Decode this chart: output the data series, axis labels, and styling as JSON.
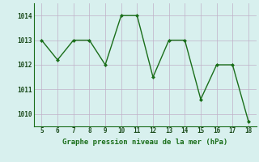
{
  "x": [
    5,
    6,
    7,
    8,
    9,
    10,
    11,
    12,
    13,
    14,
    15,
    16,
    17,
    18
  ],
  "y": [
    1013.0,
    1012.2,
    1013.0,
    1013.0,
    1012.0,
    1014.0,
    1014.0,
    1011.5,
    1013.0,
    1013.0,
    1010.6,
    1012.0,
    1012.0,
    1009.7
  ],
  "line_color": "#1a6e1a",
  "marker": "D",
  "marker_size": 2.0,
  "line_width": 1.0,
  "bg_color": "#d8f0ee",
  "grid_color": "#c0b0c8",
  "xlabel": "Graphe pression niveau de la mer (hPa)",
  "xlabel_color": "#1a6e1a",
  "xlabel_fontsize": 6.5,
  "tick_fontsize": 5.5,
  "ytick_labels": [
    1010,
    1011,
    1012,
    1013,
    1014
  ],
  "xtick_labels": [
    5,
    6,
    7,
    8,
    9,
    10,
    11,
    12,
    13,
    14,
    15,
    16,
    17,
    18
  ],
  "ylim": [
    1009.5,
    1014.5
  ],
  "xlim": [
    4.5,
    18.5
  ]
}
